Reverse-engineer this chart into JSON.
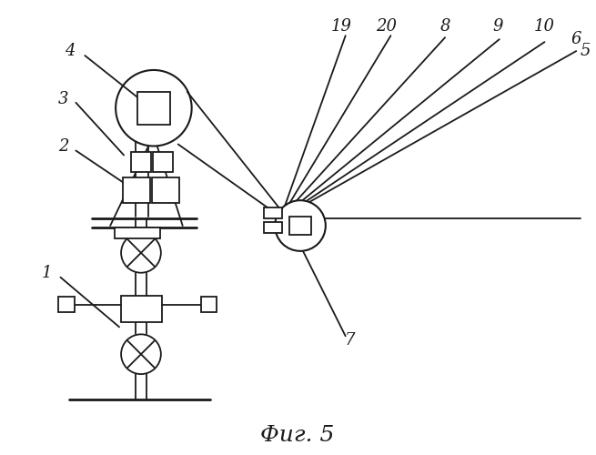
{
  "title": "Фиг. 5",
  "bg_color": "#ffffff",
  "line_color": "#1a1a1a",
  "lw": 1.3
}
